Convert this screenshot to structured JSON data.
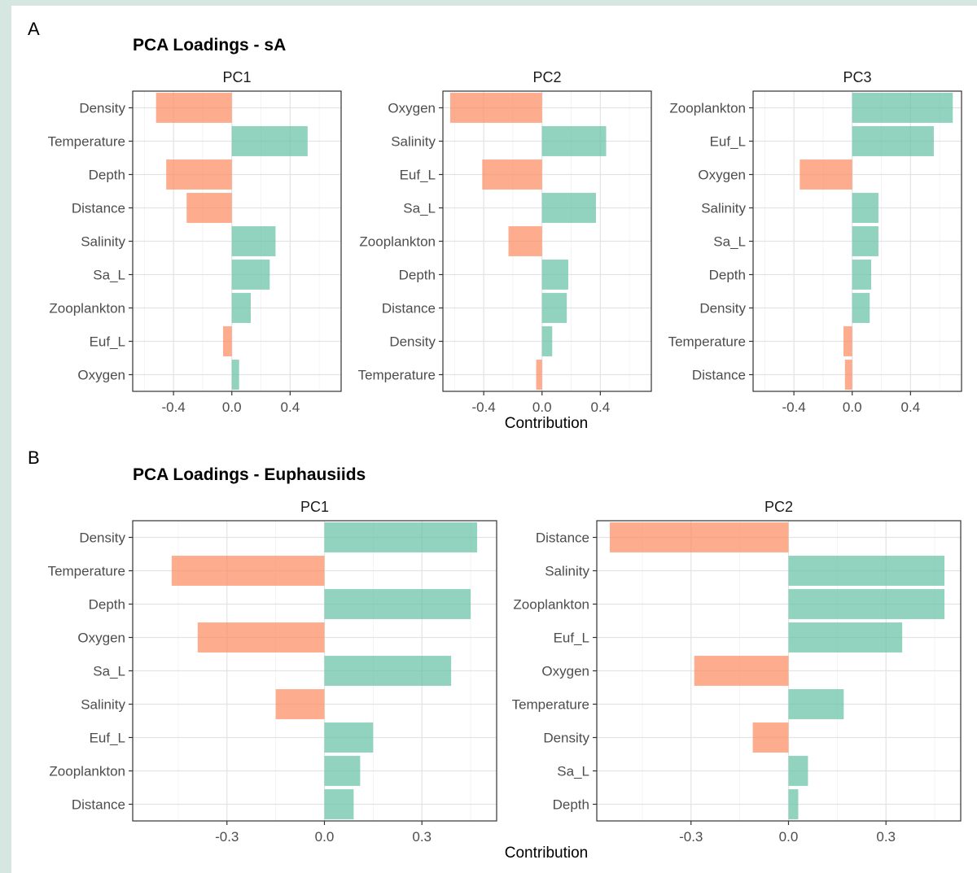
{
  "colors": {
    "positive": "#66c2a5",
    "negative": "#fc8d62",
    "bar_opacity": 0.72,
    "grid_major": "#e3e3e3",
    "grid_minor": "#f1f1f1",
    "panel_border": "#333333"
  },
  "chart_data": [
    {
      "type": "bar",
      "orientation": "horizontal",
      "section": "A",
      "title": "PCA Loadings - sA",
      "xlabel": "Contribution",
      "xlim": [
        -0.68,
        0.75
      ],
      "xticks": [
        -0.4,
        0.0,
        0.4
      ],
      "xtick_labels": [
        "-0.4",
        "0.0",
        "0.4"
      ],
      "minor_xticks": [
        -0.6,
        -0.2,
        0.2,
        0.6
      ],
      "grid": true,
      "facets": [
        {
          "name": "PC1",
          "categories": [
            "Density",
            "Temperature",
            "Depth",
            "Distance",
            "Salinity",
            "Sa_L",
            "Zooplankton",
            "Euf_L",
            "Oxygen"
          ],
          "values": [
            -0.52,
            0.52,
            -0.45,
            -0.31,
            0.3,
            0.26,
            0.13,
            -0.06,
            0.05
          ]
        },
        {
          "name": "PC2",
          "categories": [
            "Oxygen",
            "Salinity",
            "Euf_L",
            "Sa_L",
            "Zooplankton",
            "Depth",
            "Distance",
            "Density",
            "Temperature"
          ],
          "values": [
            -0.63,
            0.44,
            -0.41,
            0.37,
            -0.23,
            0.18,
            0.17,
            0.07,
            -0.04
          ]
        },
        {
          "name": "PC3",
          "categories": [
            "Zooplankton",
            "Euf_L",
            "Oxygen",
            "Salinity",
            "Sa_L",
            "Depth",
            "Density",
            "Temperature",
            "Distance"
          ],
          "values": [
            0.69,
            0.56,
            -0.36,
            0.18,
            0.18,
            0.13,
            0.12,
            -0.06,
            -0.05
          ]
        }
      ]
    },
    {
      "type": "bar",
      "orientation": "horizontal",
      "section": "B",
      "title": "PCA Loadings - Euphausiids",
      "xlabel": "Contribution",
      "xlim": [
        -0.59,
        0.53
      ],
      "xticks": [
        -0.3,
        0.0,
        0.3
      ],
      "xtick_labels": [
        "-0.3",
        "0.0",
        "0.3"
      ],
      "minor_xticks": [
        -0.45,
        -0.15,
        0.15,
        0.45
      ],
      "grid": true,
      "facets": [
        {
          "name": "PC1",
          "categories": [
            "Density",
            "Temperature",
            "Depth",
            "Oxygen",
            "Sa_L",
            "Salinity",
            "Euf_L",
            "Zooplankton",
            "Distance"
          ],
          "values": [
            0.47,
            -0.47,
            0.45,
            -0.39,
            0.39,
            -0.15,
            0.15,
            0.11,
            0.09
          ]
        },
        {
          "name": "PC2",
          "categories": [
            "Distance",
            "Salinity",
            "Zooplankton",
            "Euf_L",
            "Oxygen",
            "Temperature",
            "Density",
            "Sa_L",
            "Depth"
          ],
          "values": [
            -0.55,
            0.48,
            0.48,
            0.35,
            -0.29,
            0.17,
            -0.11,
            0.06,
            0.03
          ]
        }
      ]
    }
  ]
}
